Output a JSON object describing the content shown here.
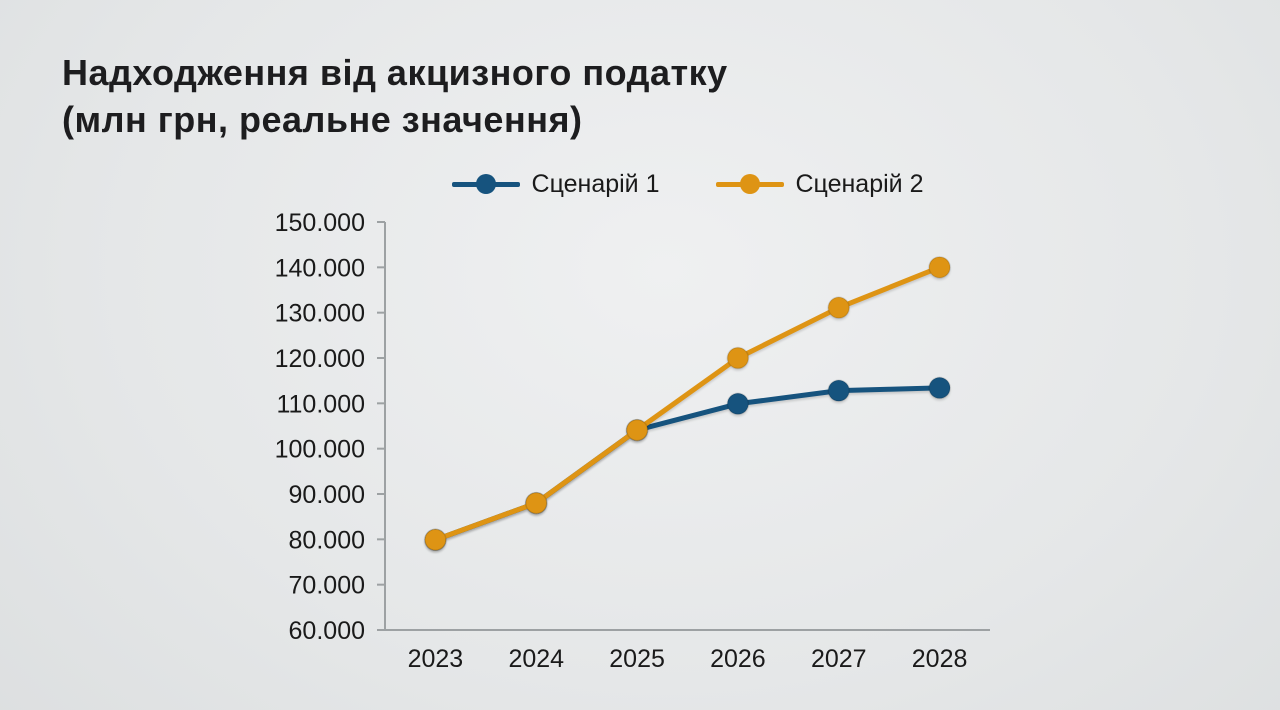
{
  "slide": {
    "title_line1": "Надходження від акцизного податку",
    "title_line2": "(млн грн, реальне значення)"
  },
  "legend": [
    {
      "label": "Сценарій 1",
      "color": "#16537E"
    },
    {
      "label": "Сценарій 2",
      "color": "#DE9414"
    }
  ],
  "chart_data": {
    "type": "line",
    "title": "Надходження від акцизного податку (млн грн, реальне значення)",
    "categories": [
      "2023",
      "2024",
      "2025",
      "2026",
      "2027",
      "2028"
    ],
    "series": [
      {
        "name": "Сценарій 1",
        "color": "#16537E",
        "values": [
          79900,
          88000,
          104100,
          109900,
          112800,
          113400
        ]
      },
      {
        "name": "Сценарій 2",
        "color": "#DE9414",
        "values": [
          79900,
          88000,
          104100,
          120000,
          131100,
          140000
        ]
      }
    ],
    "ylim": [
      60000,
      150000
    ],
    "ytick_step": 10000,
    "ytick_labels": [
      "60.000",
      "70.000",
      "80.000",
      "90.000",
      "100.000",
      "110.000",
      "120.000",
      "130.000",
      "140.000",
      "150.000"
    ],
    "grid": false,
    "legend_position": "top",
    "axis_color": "#9DA1A3",
    "text_color": "#1A1A1A"
  }
}
